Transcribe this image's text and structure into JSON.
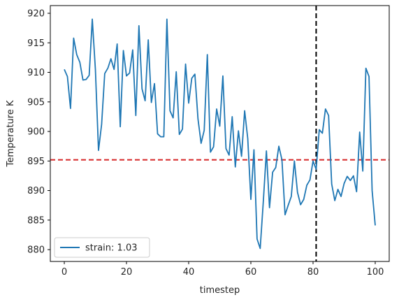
{
  "chart_data": {
    "type": "line",
    "title": "",
    "xlabel": "timestep",
    "ylabel": "Temperature K",
    "xlim": [
      -4.5,
      104.5
    ],
    "ylim": [
      878.0,
      921.3
    ],
    "xticks": [
      0,
      20,
      40,
      60,
      80,
      100
    ],
    "yticks": [
      880,
      885,
      890,
      895,
      900,
      905,
      910,
      915,
      920
    ],
    "legend": {
      "position": "lower-left",
      "entries": [
        "strain: 1.03"
      ]
    },
    "grid": false,
    "series": [
      {
        "name": "strain: 1.03",
        "color": "#1f77b4",
        "x": [
          0,
          1,
          2,
          3,
          4,
          5,
          6,
          7,
          8,
          9,
          10,
          11,
          12,
          13,
          14,
          15,
          16,
          17,
          18,
          19,
          20,
          21,
          22,
          23,
          24,
          25,
          26,
          27,
          28,
          29,
          30,
          31,
          32,
          33,
          34,
          35,
          36,
          37,
          38,
          39,
          40,
          41,
          42,
          43,
          44,
          45,
          46,
          47,
          48,
          49,
          50,
          51,
          52,
          53,
          54,
          55,
          56,
          57,
          58,
          59,
          60,
          61,
          62,
          63,
          64,
          65,
          66,
          67,
          68,
          69,
          70,
          71,
          72,
          73,
          74,
          75,
          76,
          77,
          78,
          79,
          80,
          81,
          82,
          83,
          84,
          85,
          86,
          87,
          88,
          89,
          90,
          91,
          92,
          93,
          94,
          95,
          96,
          97,
          98,
          99,
          100
        ],
        "values": [
          910.5,
          909.3,
          903.9,
          915.8,
          913.0,
          911.7,
          908.7,
          908.8,
          909.5,
          919.0,
          910.5,
          896.8,
          901.2,
          909.8,
          910.7,
          912.3,
          910.5,
          914.8,
          900.8,
          913.7,
          909.4,
          909.9,
          913.8,
          902.7,
          917.9,
          907.2,
          905.2,
          915.5,
          904.9,
          908.1,
          899.6,
          899.1,
          899.1,
          919.0,
          903.5,
          902.3,
          910.1,
          899.5,
          900.4,
          911.4,
          904.8,
          909.0,
          909.7,
          902.1,
          898.0,
          900.2,
          913.0,
          896.5,
          897.4,
          903.8,
          900.9,
          909.4,
          897.1,
          896.0,
          902.5,
          894.0,
          900.1,
          895.8,
          903.5,
          898.8,
          888.5,
          896.9,
          881.8,
          880.2,
          888.1,
          896.7,
          887.1,
          893.1,
          893.9,
          897.5,
          895.2,
          885.9,
          887.5,
          889.0,
          895.0,
          889.7,
          887.6,
          888.5,
          890.9,
          891.8,
          895.0,
          893.6,
          900.3,
          899.7,
          903.8,
          902.7,
          891.1,
          888.3,
          890.2,
          889.0,
          891.2,
          892.4,
          891.7,
          892.5,
          889.8,
          899.9,
          893.3,
          910.7,
          909.3,
          890.0,
          884.1
        ]
      }
    ],
    "reference_lines": [
      {
        "orientation": "horizontal",
        "value": 895.2,
        "color": "#d62728",
        "style": "dashed"
      },
      {
        "orientation": "vertical",
        "value": 81,
        "color": "#000000",
        "style": "dashed"
      }
    ]
  }
}
